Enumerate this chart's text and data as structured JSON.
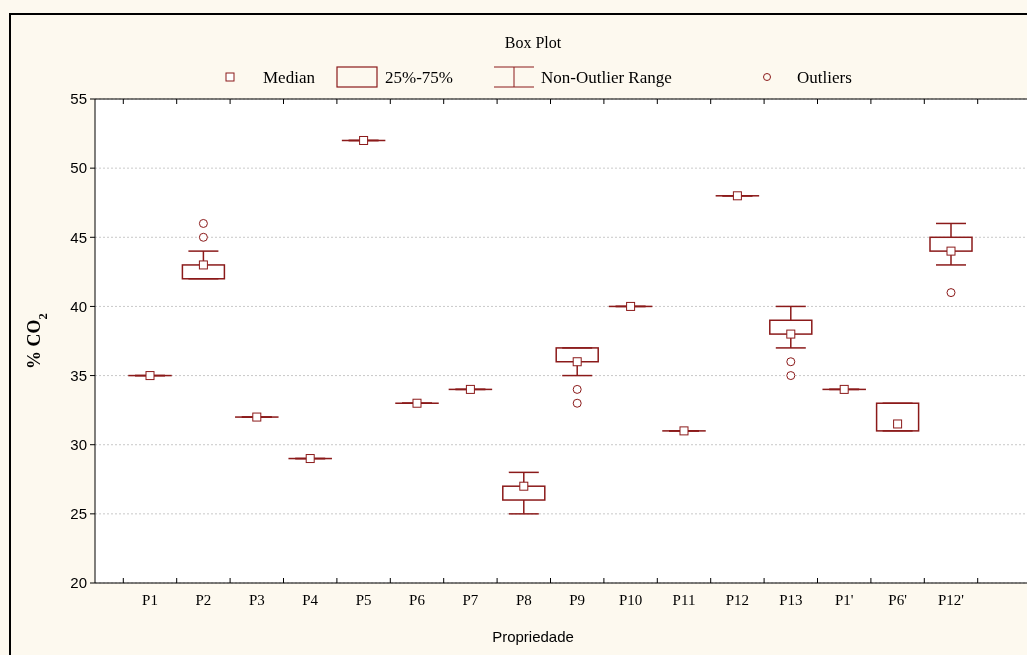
{
  "chart_data": {
    "type": "box",
    "title": "Box Plot",
    "xlabel": "Propriedade",
    "ylabel": "% CO$_{2}$",
    "categories": [
      "P1",
      "P2",
      "P3",
      "P4",
      "P5",
      "P6",
      "P7",
      "P8",
      "P9",
      "P10",
      "P11",
      "P12",
      "P13",
      "P1'",
      "P6'",
      "P12'"
    ],
    "color": "#8b1a1a",
    "boxes": [
      {
        "low": 35,
        "q1": 35,
        "median": 35,
        "q3": 35,
        "high": 35
      },
      {
        "low": 42,
        "q1": 42,
        "median": 43,
        "q3": 43,
        "high": 44,
        "outliers": [
          45,
          46
        ]
      },
      {
        "low": 32,
        "q1": 32,
        "median": 32,
        "q3": 32,
        "high": 32
      },
      {
        "low": 29,
        "q1": 29,
        "median": 29,
        "q3": 29,
        "high": 29
      },
      {
        "low": 52,
        "q1": 52,
        "median": 52,
        "q3": 52,
        "high": 52
      },
      {
        "low": 33,
        "q1": 33,
        "median": 33,
        "q3": 33,
        "high": 33
      },
      {
        "low": 34,
        "q1": 34,
        "median": 34,
        "q3": 34,
        "high": 34
      },
      {
        "low": 25,
        "q1": 26,
        "median": 27,
        "q3": 27,
        "high": 28
      },
      {
        "low": 35,
        "q1": 36,
        "median": 36,
        "q3": 37,
        "high": 37,
        "outliers": [
          34,
          33
        ]
      },
      {
        "low": 40,
        "q1": 40,
        "median": 40,
        "q3": 40,
        "high": 40
      },
      {
        "low": 31,
        "q1": 31,
        "median": 31,
        "q3": 31,
        "high": 31
      },
      {
        "low": 48,
        "q1": 48,
        "median": 48,
        "q3": 48,
        "high": 48
      },
      {
        "low": 37,
        "q1": 38,
        "median": 38,
        "q3": 39,
        "high": 40,
        "outliers": [
          36,
          35
        ]
      },
      {
        "low": 34,
        "q1": 34,
        "median": 34,
        "q3": 34,
        "high": 34
      },
      {
        "low": 31,
        "q1": 31,
        "median": 31.5,
        "q3": 33,
        "high": 33
      },
      {
        "low": 43,
        "q1": 44,
        "median": 44,
        "q3": 45,
        "high": 46,
        "outliers": [
          41
        ]
      }
    ],
    "ylim": [
      20,
      55
    ],
    "yticks": [
      20,
      25,
      30,
      35,
      40,
      45,
      50,
      55
    ],
    "grid": "y",
    "annotations": [
      "Median",
      "25%-75%",
      "Non-Outlier Range",
      "Outliers"
    ]
  }
}
